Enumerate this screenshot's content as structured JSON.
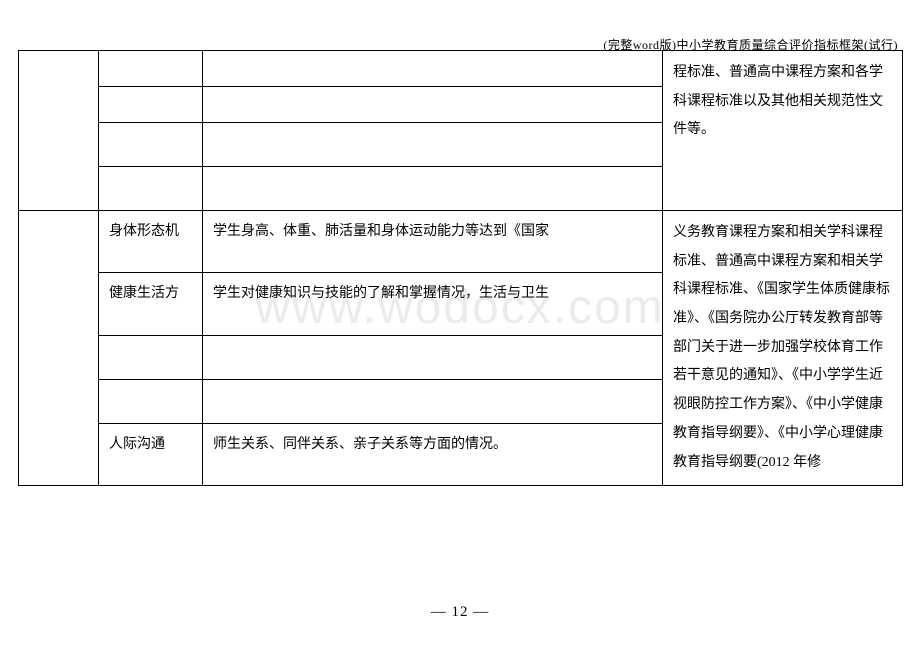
{
  "header": "(完整word版)中小学教育质量综合评价指标框架(试行)",
  "watermark": "www.wodocx.com",
  "page_number": "— 12 —",
  "table": {
    "col_widths": [
      "80px",
      "104px",
      "460px",
      "240px"
    ],
    "border_color": "#000000",
    "background": "#ffffff",
    "font_size": 14,
    "section1_col4": "程标准、普通高中课程方案和各学科课程标准以及其他相关规范性文件等。",
    "section2": {
      "row1": {
        "col2": "身体形态机",
        "col3": "学生身高、体重、肺活量和身体运动能力等达到《国家"
      },
      "row2": {
        "col2": "健康生活方",
        "col3": "学生对健康知识与技能的了解和掌握情况，生活与卫生"
      },
      "row3": {
        "col2": "人际沟通",
        "col3": "师生关系、同伴关系、亲子关系等方面的情况。"
      },
      "col4": "义务教育课程方案和相关学科课程标准、普通高中课程方案和相关学科课程标准、《国家学生体质健康标准》、《国务院办公厅转发教育部等部门关于进一步加强学校体育工作若干意见的通知》、《中小学学生近视眼防控工作方案》、《中小学健康教育指导纲要》、《中小学心理健康教育指导纲要(2012 年修"
    }
  }
}
